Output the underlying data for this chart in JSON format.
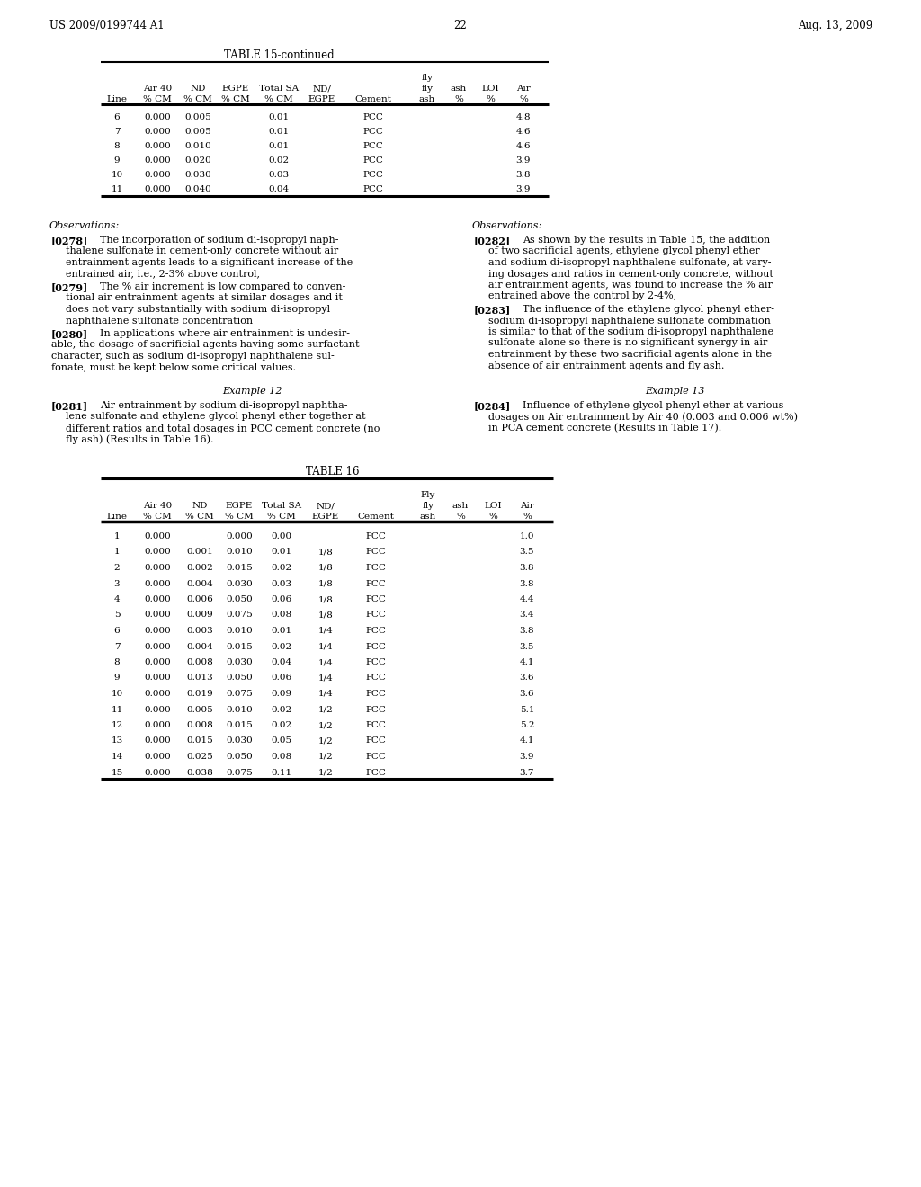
{
  "header_left": "US 2009/0199744 A1",
  "header_right": "Aug. 13, 2009",
  "page_number": "22",
  "bg_color": "#ffffff",
  "table15_title": "TABLE 15-continued",
  "table15_data": [
    [
      "6",
      "0.000",
      "0.005",
      "",
      "0.01",
      "",
      "PCC",
      "",
      "",
      "4.8"
    ],
    [
      "7",
      "0.000",
      "0.005",
      "",
      "0.01",
      "",
      "PCC",
      "",
      "",
      "4.6"
    ],
    [
      "8",
      "0.000",
      "0.010",
      "",
      "0.01",
      "",
      "PCC",
      "",
      "",
      "4.6"
    ],
    [
      "9",
      "0.000",
      "0.020",
      "",
      "0.02",
      "",
      "PCC",
      "",
      "",
      "3.9"
    ],
    [
      "10",
      "0.000",
      "0.030",
      "",
      "0.03",
      "",
      "PCC",
      "",
      "",
      "3.8"
    ],
    [
      "11",
      "0.000",
      "0.040",
      "",
      "0.04",
      "",
      "PCC",
      "",
      "",
      "3.9"
    ]
  ],
  "obs_left_lines": [
    [
      "obs_title",
      "Observations:"
    ],
    [
      "ref_bold",
      "[0278]",
      "The incorporation of sodium di-isopropyl naph-"
    ],
    [
      "cont",
      "thalene sulfonate in cement-only concrete without air"
    ],
    [
      "cont",
      "entrainment agents leads to a significant increase of the"
    ],
    [
      "cont",
      "entrained air, i.e., 2-3% above control,"
    ],
    [
      "ref_bold",
      "[0279]",
      "The % air increment is low compared to conven-"
    ],
    [
      "cont",
      "tional air entrainment agents at similar dosages and it"
    ],
    [
      "cont",
      "does not vary substantially with sodium di-isopropyl"
    ],
    [
      "cont",
      "naphthalene sulfonate concentration"
    ],
    [
      "ref_bold_noindent",
      "[0280]",
      "In applications where air entrainment is undesir-"
    ],
    [
      "cont_noindent",
      "able, the dosage of sacrificial agents having some surfactant"
    ],
    [
      "cont_noindent",
      "character, such as sodium di-isopropyl naphthalene sul-"
    ],
    [
      "cont_noindent",
      "fonate, must be kept below some critical values."
    ]
  ],
  "obs_right_lines": [
    [
      "obs_title",
      "Observations:"
    ],
    [
      "ref_bold",
      "[0282]",
      "As shown by the results in Table 15, the addition"
    ],
    [
      "cont",
      "of two sacrificial agents, ethylene glycol phenyl ether"
    ],
    [
      "cont",
      "and sodium di-isopropyl naphthalene sulfonate, at vary-"
    ],
    [
      "cont",
      "ing dosages and ratios in cement-only concrete, without"
    ],
    [
      "cont",
      "air entrainment agents, was found to increase the % air"
    ],
    [
      "cont",
      "entrained above the control by 2-4%,"
    ],
    [
      "ref_bold",
      "[0283]",
      "The influence of the ethylene glycol phenyl ether-"
    ],
    [
      "cont",
      "sodium di-isopropyl naphthalene sulfonate combination"
    ],
    [
      "cont",
      "is similar to that of the sodium di-isopropyl naphthalene"
    ],
    [
      "cont",
      "sulfonate alone so there is no significant synergy in air"
    ],
    [
      "cont",
      "entrainment by these two sacrificial agents alone in the"
    ],
    [
      "cont",
      "absence of air entrainment agents and fly ash."
    ]
  ],
  "example12_title": "Example 12",
  "example12_lines": [
    [
      "ref_bold",
      "[0281]",
      "Air entrainment by sodium di-isopropyl naphtha-"
    ],
    [
      "cont",
      "lene sulfonate and ethylene glycol phenyl ether together at"
    ],
    [
      "cont",
      "different ratios and total dosages in PCC cement concrete (no"
    ],
    [
      "cont",
      "fly ash) (Results in Table 16)."
    ]
  ],
  "example13_title": "Example 13",
  "example13_lines": [
    [
      "ref_bold",
      "[0284]",
      "Influence of ethylene glycol phenyl ether at various"
    ],
    [
      "cont",
      "dosages on Air entrainment by Air 40 (0.003 and 0.006 wt%)"
    ],
    [
      "cont",
      "in PCA cement concrete (Results in Table 17)."
    ]
  ],
  "table16_title": "TABLE 16",
  "table16_data": [
    [
      "1",
      "0.000",
      "",
      "0.000",
      "0.00",
      "",
      "PCC",
      "",
      "",
      "1.0"
    ],
    [
      "1",
      "0.000",
      "0.001",
      "0.010",
      "0.01",
      "1/8",
      "PCC",
      "",
      "",
      "3.5"
    ],
    [
      "2",
      "0.000",
      "0.002",
      "0.015",
      "0.02",
      "1/8",
      "PCC",
      "",
      "",
      "3.8"
    ],
    [
      "3",
      "0.000",
      "0.004",
      "0.030",
      "0.03",
      "1/8",
      "PCC",
      "",
      "",
      "3.8"
    ],
    [
      "4",
      "0.000",
      "0.006",
      "0.050",
      "0.06",
      "1/8",
      "PCC",
      "",
      "",
      "4.4"
    ],
    [
      "5",
      "0.000",
      "0.009",
      "0.075",
      "0.08",
      "1/8",
      "PCC",
      "",
      "",
      "3.4"
    ],
    [
      "6",
      "0.000",
      "0.003",
      "0.010",
      "0.01",
      "1/4",
      "PCC",
      "",
      "",
      "3.8"
    ],
    [
      "7",
      "0.000",
      "0.004",
      "0.015",
      "0.02",
      "1/4",
      "PCC",
      "",
      "",
      "3.5"
    ],
    [
      "8",
      "0.000",
      "0.008",
      "0.030",
      "0.04",
      "1/4",
      "PCC",
      "",
      "",
      "4.1"
    ],
    [
      "9",
      "0.000",
      "0.013",
      "0.050",
      "0.06",
      "1/4",
      "PCC",
      "",
      "",
      "3.6"
    ],
    [
      "10",
      "0.000",
      "0.019",
      "0.075",
      "0.09",
      "1/4",
      "PCC",
      "",
      "",
      "3.6"
    ],
    [
      "11",
      "0.000",
      "0.005",
      "0.010",
      "0.02",
      "1/2",
      "PCC",
      "",
      "",
      "5.1"
    ],
    [
      "12",
      "0.000",
      "0.008",
      "0.015",
      "0.02",
      "1/2",
      "PCC",
      "",
      "",
      "5.2"
    ],
    [
      "13",
      "0.000",
      "0.015",
      "0.030",
      "0.05",
      "1/2",
      "PCC",
      "",
      "",
      "4.1"
    ],
    [
      "14",
      "0.000",
      "0.025",
      "0.050",
      "0.08",
      "1/2",
      "PCC",
      "",
      "",
      "3.9"
    ],
    [
      "15",
      "0.000",
      "0.038",
      "0.075",
      "0.11",
      "1/2",
      "PCC",
      "",
      "",
      "3.7"
    ]
  ]
}
